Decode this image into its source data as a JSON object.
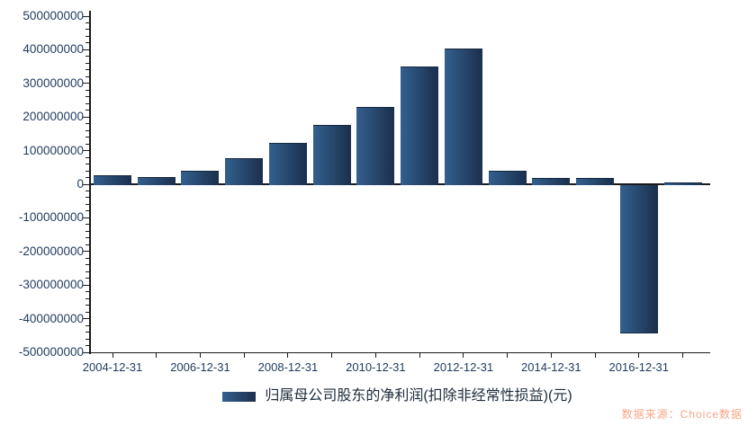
{
  "chart_data": {
    "type": "bar",
    "x": [
      "2004-12-31",
      "2005-12-31",
      "2006-12-31",
      "2007-12-31",
      "2008-12-31",
      "2009-12-31",
      "2010-12-31",
      "2011-12-31",
      "2012-12-31",
      "2013-12-31",
      "2014-12-31",
      "2015-12-31",
      "2016-12-31",
      "2017-12-31"
    ],
    "values": [
      26000000,
      21000000,
      40000000,
      78000000,
      122000000,
      176000000,
      230000000,
      350000000,
      404000000,
      41000000,
      20000000,
      20000000,
      -440000000,
      6000000
    ],
    "visible_x_labels": [
      "2004-12-31",
      "2006-12-31",
      "2008-12-31",
      "2010-12-31",
      "2012-12-31",
      "2014-12-31",
      "2016-12-31"
    ],
    "y_tick_labels": [
      "500000000",
      "400000000",
      "300000000",
      "200000000",
      "100000000",
      "0",
      "-100000000",
      "-200000000",
      "-300000000",
      "-400000000",
      "-500000000"
    ],
    "ylim": [
      -500000000,
      500000000
    ],
    "y_major_step": 100000000,
    "y_minor_step": 20000000,
    "title": "",
    "xlabel": "",
    "ylabel": "",
    "legend": "归属母公司股东的净利润(扣除非经常性损益)(元)",
    "legend_position": "bottom",
    "grid": false
  },
  "source_note": {
    "text": "数据来源：Choice数据"
  },
  "colors": {
    "bar_gradient_left": "#33608f",
    "bar_gradient_right": "#1b2f4c",
    "axis": "#1a1a1a",
    "tick_label": "#1f3a5e",
    "legend_text": "#1e2c3c",
    "source_text": "#f6a687"
  }
}
